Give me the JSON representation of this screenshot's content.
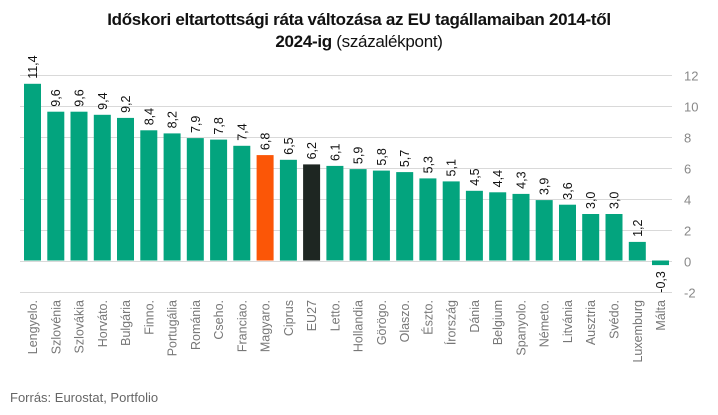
{
  "chart_data": {
    "type": "bar",
    "title_bold": "Időskori eltartottsági ráta változása az EU tagállamaiban 2014-től",
    "title_bold_line2": "2024-ig",
    "title_suffix": " (százalékpont)",
    "source": "Forrás: Eurostat, Portfolio",
    "xlabel": "",
    "ylabel": "",
    "ylim": [
      -2,
      12
    ],
    "yticks": [
      12,
      10,
      8,
      6,
      4,
      2,
      0,
      -2
    ],
    "ytick_labels": [
      "12",
      "10",
      "8",
      "6",
      "4",
      "2",
      "0",
      "-2"
    ],
    "y_axis_side": "right",
    "grid": true,
    "legend": "none",
    "categories": [
      "Lengyelo.",
      "Szlovénia",
      "Szlovákia",
      "Horváto.",
      "Bulgária",
      "Finno.",
      "Portugália",
      "Románia",
      "Cseho.",
      "Franciao.",
      "Magyaro.",
      "Ciprus",
      "EU27",
      "Letto.",
      "Hollandia",
      "Görögo.",
      "Olaszo.",
      "Észto.",
      "Írország",
      "Dánia",
      "Belgium",
      "Spanyolo.",
      "Németo.",
      "Litvánia",
      "Ausztria",
      "Svédo.",
      "Luxemburg",
      "Málta"
    ],
    "values": [
      11.4,
      9.6,
      9.6,
      9.4,
      9.2,
      8.4,
      8.2,
      7.9,
      7.8,
      7.4,
      6.8,
      6.5,
      6.2,
      6.1,
      5.9,
      5.8,
      5.7,
      5.3,
      5.1,
      4.5,
      4.4,
      4.3,
      3.9,
      3.6,
      3.0,
      3.0,
      1.2,
      -0.3
    ],
    "value_labels": [
      "11,4",
      "9,6",
      "9,6",
      "9,4",
      "9,2",
      "8,4",
      "8,2",
      "7,9",
      "7,8",
      "7,4",
      "6,8",
      "6,5",
      "6,2",
      "6,1",
      "5,9",
      "5,8",
      "5,7",
      "5,3",
      "5,1",
      "4,5",
      "4,4",
      "4,3",
      "3,9",
      "3,6",
      "3,0",
      "3,0",
      "1,2",
      "-0,3"
    ],
    "colors": {
      "default": "#03a47e",
      "highlight": {
        "Magyaro.": "#fb5607",
        "EU27": "#1e2622"
      },
      "grid": "#d9d9d9"
    }
  }
}
